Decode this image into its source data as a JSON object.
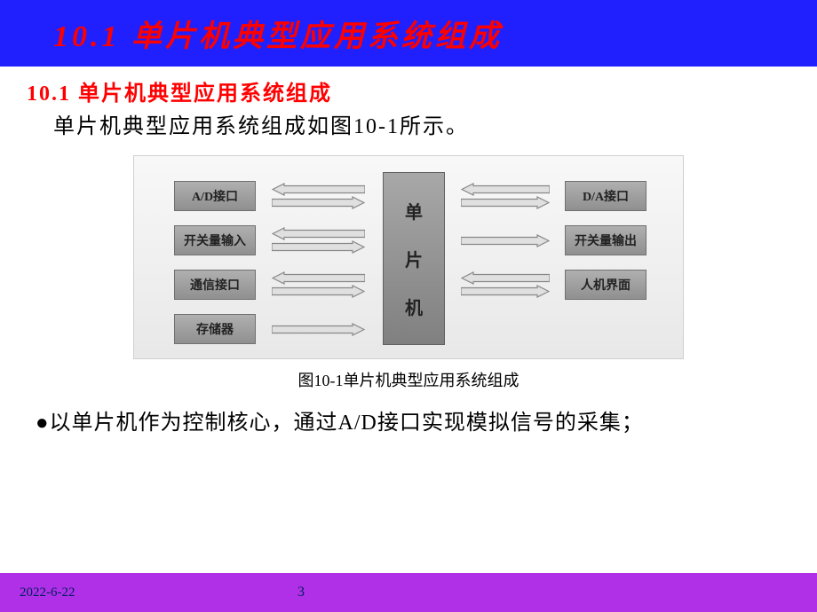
{
  "colors": {
    "header_bg": "#2020ff",
    "header_text": "#ff0000",
    "section_title": "#ff0000",
    "body_text": "#000000",
    "footer_bg": "#b030e8",
    "footer_text": "#002060",
    "block_border": "#707070",
    "arrow_stroke": "#888888",
    "arrow_fill": "#e0e0e0"
  },
  "header": {
    "title": "10.1 单片机典型应用系统组成"
  },
  "section": {
    "title": "10.1 单片机典型应用系统组成",
    "intro": "单片机典型应用系统组成如图10-1所示。"
  },
  "diagram": {
    "type": "block-diagram",
    "center": {
      "chars": [
        "单",
        "片",
        "机"
      ]
    },
    "left_modules": [
      {
        "label": "A/D接口",
        "bidir": true
      },
      {
        "label": "开关量输入",
        "bidir": true
      },
      {
        "label": "通信接口",
        "bidir": true
      },
      {
        "label": "存储器",
        "direction": "to_center_only"
      }
    ],
    "right_modules": [
      {
        "label": "D/A接口",
        "bidir": true
      },
      {
        "label": "开关量输出",
        "direction": "from_center_only"
      },
      {
        "label": "人机界面",
        "bidir": true,
        "row": 3
      }
    ],
    "caption": "图10-1单片机典型应用系统组成"
  },
  "bullet": "●以单片机作为控制核心，通过A/D接口实现模拟信号的采集；",
  "footer": {
    "date": "2022-6-22",
    "page": "3"
  }
}
